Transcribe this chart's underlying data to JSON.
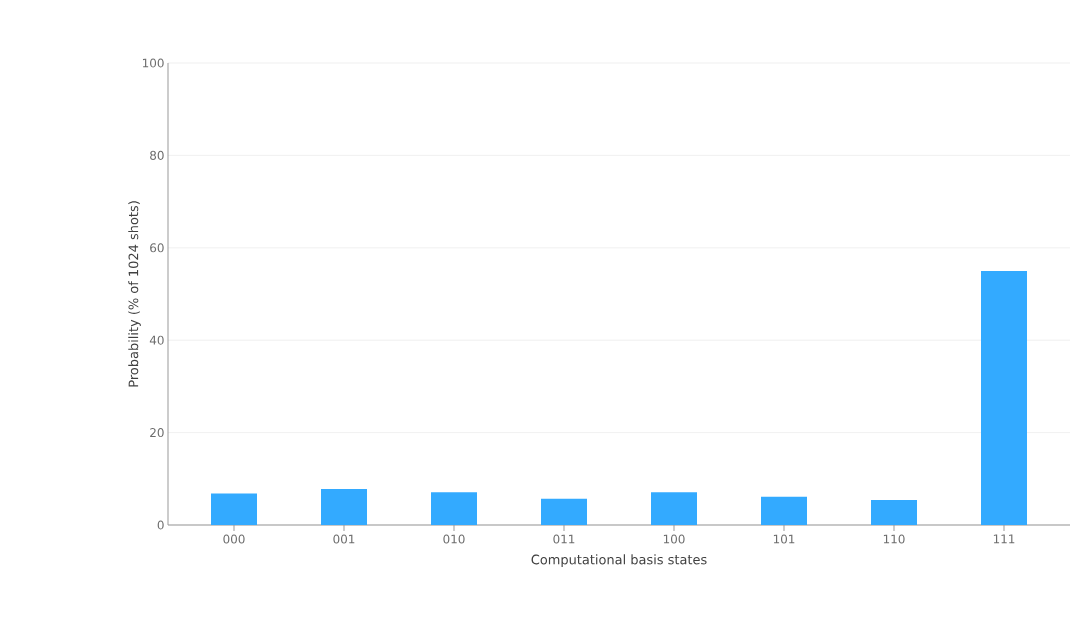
{
  "chart_data": {
    "type": "bar",
    "xlabel": "Computational basis states",
    "ylabel": "Probability (% of 1024 shots)",
    "categories": [
      "000",
      "001",
      "010",
      "011",
      "100",
      "101",
      "110",
      "111"
    ],
    "values": [
      6.8,
      7.8,
      7.1,
      5.7,
      7.1,
      6.1,
      5.4,
      55.0
    ],
    "color": "#33aaff",
    "ylim": [
      0,
      100
    ],
    "yticks": [
      0,
      20,
      40,
      60,
      80,
      100
    ],
    "grid": "y"
  }
}
